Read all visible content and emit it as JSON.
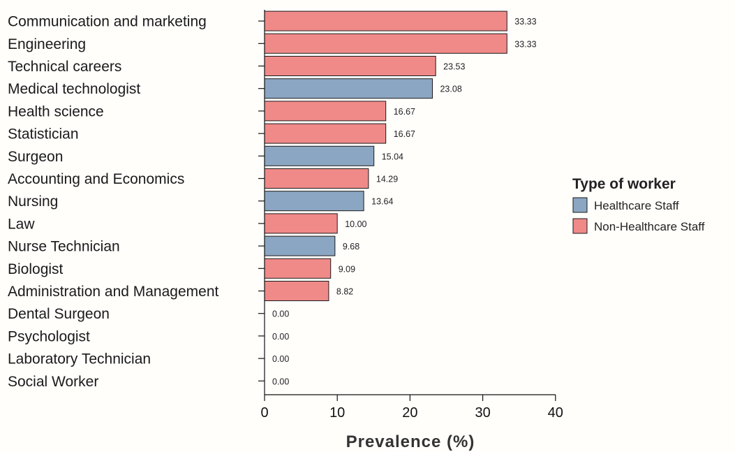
{
  "chart_data": {
    "type": "bar",
    "orientation": "horizontal",
    "xlabel": "Prevalence (%)",
    "ylabel": "",
    "xlim": [
      0,
      40
    ],
    "xticks": [
      0,
      10,
      20,
      30,
      40
    ],
    "grid": false,
    "legend": {
      "title": "Type of worker",
      "placement": "right",
      "entries": [
        {
          "label": "Healthcare Staff",
          "color": "#8ba6c2"
        },
        {
          "label": "Non-Healthcare Staff",
          "color": "#f08a89"
        }
      ]
    },
    "bars": [
      {
        "category": "Communication and marketing",
        "value": 33.33,
        "value_label": "33.33",
        "group": "Non-Healthcare Staff"
      },
      {
        "category": "Engineering",
        "value": 33.33,
        "value_label": "33.33",
        "group": "Non-Healthcare Staff"
      },
      {
        "category": "Technical careers",
        "value": 23.53,
        "value_label": "23.53",
        "group": "Non-Healthcare Staff"
      },
      {
        "category": "Medical technologist",
        "value": 23.08,
        "value_label": "23.08",
        "group": "Healthcare Staff"
      },
      {
        "category": "Health science",
        "value": 16.67,
        "value_label": "16.67",
        "group": "Non-Healthcare Staff"
      },
      {
        "category": "Statistician",
        "value": 16.67,
        "value_label": "16.67",
        "group": "Non-Healthcare Staff"
      },
      {
        "category": "Surgeon",
        "value": 15.04,
        "value_label": "15.04",
        "group": "Healthcare Staff"
      },
      {
        "category": "Accounting and Economics",
        "value": 14.29,
        "value_label": "14.29",
        "group": "Non-Healthcare Staff"
      },
      {
        "category": "Nursing",
        "value": 13.64,
        "value_label": "13.64",
        "group": "Healthcare Staff"
      },
      {
        "category": "Law",
        "value": 10.0,
        "value_label": "10.00",
        "group": "Non-Healthcare Staff"
      },
      {
        "category": "Nurse Technician",
        "value": 9.68,
        "value_label": "9.68",
        "group": "Healthcare Staff"
      },
      {
        "category": "Biologist",
        "value": 9.09,
        "value_label": "9.09",
        "group": "Non-Healthcare Staff"
      },
      {
        "category": "Administration and Management",
        "value": 8.82,
        "value_label": "8.82",
        "group": "Non-Healthcare Staff"
      },
      {
        "category": "Dental Surgeon",
        "value": 0.0,
        "value_label": "0.00",
        "group": "Healthcare Staff"
      },
      {
        "category": "Psychologist",
        "value": 0.0,
        "value_label": "0.00",
        "group": "Healthcare Staff"
      },
      {
        "category": "Laboratory Technician",
        "value": 0.0,
        "value_label": "0.00",
        "group": "Healthcare Staff"
      },
      {
        "category": "Social Worker",
        "value": 0.0,
        "value_label": "0.00",
        "group": "Healthcare Staff"
      }
    ]
  }
}
